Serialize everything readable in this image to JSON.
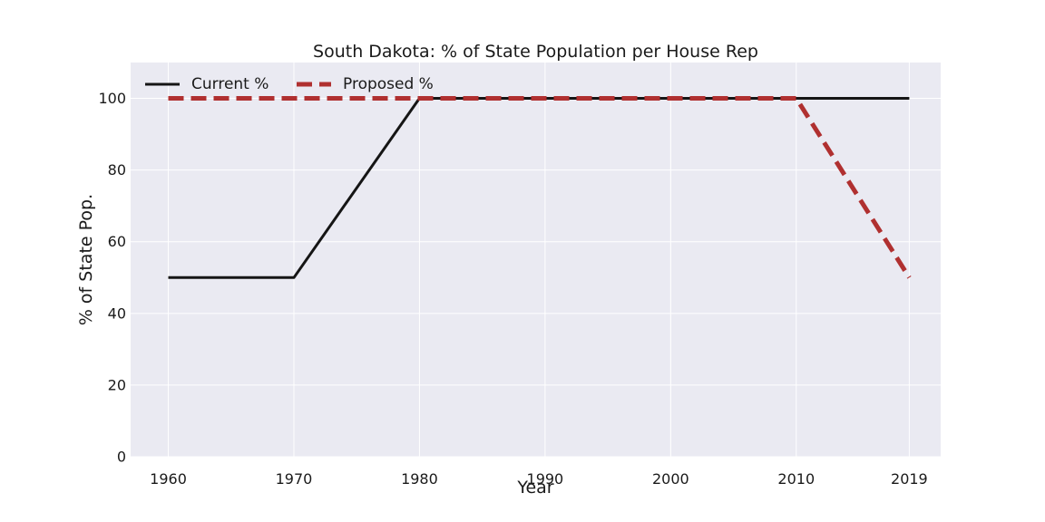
{
  "chart_data": {
    "type": "line",
    "title": "South Dakota: % of State Population per House Rep",
    "xlabel": "Year",
    "ylabel": "% of State Pop.",
    "x": [
      1960,
      1970,
      1980,
      1990,
      2000,
      2010,
      2019
    ],
    "x_tick_labels": [
      "1960",
      "1970",
      "1980",
      "1990",
      "2000",
      "2010",
      "2019"
    ],
    "y_ticks": [
      0,
      20,
      40,
      60,
      80,
      100
    ],
    "y_tick_labels": [
      "0",
      "20",
      "40",
      "60",
      "80",
      "100"
    ],
    "ylim": [
      0,
      110
    ],
    "grid": true,
    "legend_position": "top-left",
    "series": [
      {
        "name": "Current %",
        "values": [
          50,
          50,
          100,
          100,
          100,
          100,
          100
        ],
        "color": "#151515",
        "style": "solid"
      },
      {
        "name": "Proposed %",
        "values": [
          100,
          100,
          100,
          100,
          100,
          100,
          50
        ],
        "color": "#b03030",
        "style": "dashed"
      }
    ],
    "background_color": "#eaeaf2"
  }
}
